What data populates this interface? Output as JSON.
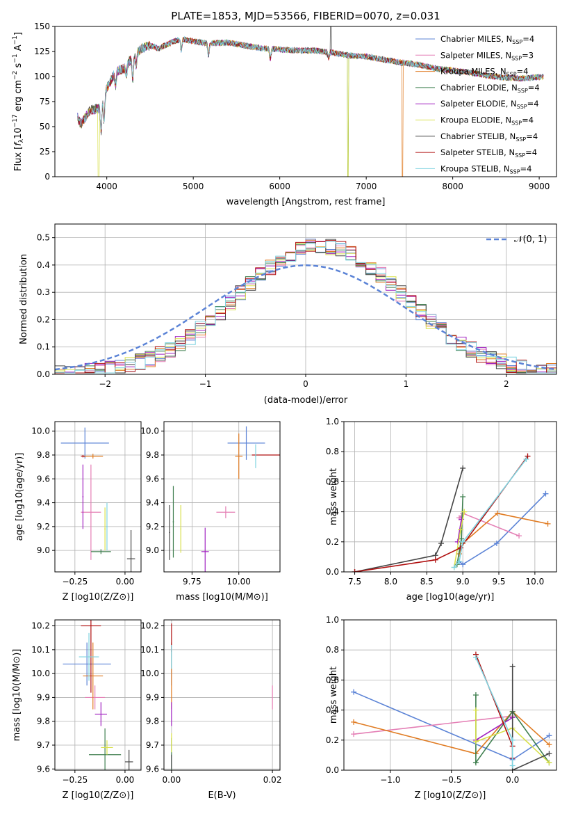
{
  "figure_title": "PLATE=1853, MJD=53566, FIBERID=0070, z=0.031",
  "models": [
    {
      "name": "Chabrier MILES",
      "color": "#5b83d6",
      "nssp": "4"
    },
    {
      "name": "Salpeter MILES",
      "color": "#e47fb5",
      "nssp": "3"
    },
    {
      "name": "Kroupa MILES",
      "color": "#e07b22",
      "nssp": "4"
    },
    {
      "name": "Chabrier ELODIE",
      "color": "#3f7f4f",
      "nssp": "4"
    },
    {
      "name": "Salpeter ELODIE",
      "color": "#a020c0",
      "nssp": "4"
    },
    {
      "name": "Kroupa ELODIE",
      "color": "#d8e04a",
      "nssp": "4"
    },
    {
      "name": "Chabrier STELIB",
      "color": "#444444",
      "nssp": "4"
    },
    {
      "name": "Salpeter STELIB",
      "color": "#b01010",
      "nssp": "4"
    },
    {
      "name": "Kroupa STELIB",
      "color": "#7fd3e0",
      "nssp": "4"
    }
  ],
  "chart_data": [
    {
      "id": "spectrum",
      "type": "line",
      "title": "PLATE=1853, MJD=53566, FIBERID=0070, z=0.031",
      "xlabel": "wavelength [Angstrom, rest frame]",
      "ylabel": "Flux [f_λ 10^-17 erg cm^-2 s^-1 A^-1]",
      "xlim": [
        3400,
        9200
      ],
      "ylim": [
        0,
        150
      ],
      "xticks": [
        "4000",
        "5000",
        "6000",
        "7000",
        "8000",
        "9000"
      ],
      "yticks": [
        "0",
        "25",
        "50",
        "75",
        "100",
        "125",
        "150"
      ],
      "legend": "top-right",
      "grid": false,
      "continuum_x": [
        3650,
        3700,
        3800,
        3900,
        4000,
        4100,
        4200,
        4300,
        4400,
        4500,
        4600,
        4700,
        4800,
        4900,
        5000,
        5200,
        5400,
        5600,
        5800,
        6000,
        6200,
        6400,
        6600,
        6800,
        7000,
        7200,
        7400,
        7600,
        7800,
        8000,
        8200,
        8400,
        8600,
        8800,
        9050
      ],
      "continuum_y": [
        62,
        52,
        66,
        68,
        88,
        105,
        108,
        120,
        128,
        131,
        128,
        132,
        136,
        137,
        135,
        133,
        134,
        131,
        128,
        127,
        126,
        126,
        124,
        121,
        120,
        117,
        114,
        112,
        108,
        106,
        104,
        101,
        99,
        98,
        100
      ],
      "notes": [
        "dips near 3900, 6800 and 7420 Angstrom in some model curves"
      ]
    },
    {
      "id": "residual-histogram",
      "type": "step",
      "xlabel": "(data-model)/error",
      "ylabel": "Normed distribution",
      "xlim": [
        -2.5,
        2.5
      ],
      "ylim": [
        0,
        0.55
      ],
      "xticks": [
        "−2",
        "−1",
        "0",
        "1",
        "2"
      ],
      "yticks": [
        "0.0",
        "0.1",
        "0.2",
        "0.3",
        "0.4",
        "0.5"
      ],
      "legend_label": "𝒩(0, 1)",
      "legend": "top-right",
      "grid": true,
      "bin_width": 0.1,
      "approx_peak": 0.47,
      "approx_center": 0.15,
      "approx_sigma": 0.83
    },
    {
      "id": "age-vs-Z",
      "type": "errorbar",
      "xlabel": "Z [log10(Z/Z⊙)]",
      "ylabel": "age [log10(age/yr)]",
      "xlim": [
        -0.35,
        0.08
      ],
      "ylim": [
        8.82,
        10.08
      ],
      "xticks": [
        "−0.25",
        "0.00"
      ],
      "xtick_values": [
        -0.25,
        0.0
      ],
      "yticks": [
        "9.0",
        "9.2",
        "9.4",
        "9.6",
        "9.8",
        "10.0"
      ],
      "ytick_values": [
        9.0,
        9.2,
        9.4,
        9.6,
        9.8,
        10.0
      ],
      "points": [
        {
          "x": -0.2,
          "y": 9.9,
          "xerr": 0.12,
          "yerr": 0.13
        },
        {
          "x": -0.17,
          "y": 9.32,
          "xerr": 0.05,
          "yerr": 0.4
        },
        {
          "x": -0.16,
          "y": 9.79,
          "xerr": 0.05,
          "yerr": 0.02
        },
        {
          "x": -0.12,
          "y": 8.99,
          "xerr": 0.05,
          "yerr": 0.02
        },
        {
          "x": -0.21,
          "y": 9.45,
          "xerr": 0.003,
          "yerr": 0.27
        },
        {
          "x": -0.1,
          "y": 9.18,
          "xerr": 0.003,
          "yerr": 0.18
        },
        {
          "x": 0.03,
          "y": 8.93,
          "xerr": 0.02,
          "yerr": 0.24
        },
        {
          "x": -0.21,
          "y": 9.79,
          "xerr": 0.01,
          "yerr": 0.01
        },
        {
          "x": -0.09,
          "y": 9.2,
          "xerr": 0.003,
          "yerr": 0.2
        }
      ]
    },
    {
      "id": "age-vs-mass",
      "type": "errorbar",
      "xlabel": "mass [log10(M/M⊙)]",
      "ylabel": "",
      "xlim": [
        9.6,
        10.22
      ],
      "ylim": [
        8.82,
        10.08
      ],
      "xticks": [
        "9.75",
        "10.00"
      ],
      "xtick_values": [
        9.75,
        10.0
      ],
      "yticks": [
        "9.0",
        "9.2",
        "9.4",
        "9.6",
        "9.8",
        "10.0"
      ],
      "ytick_values": [
        9.0,
        9.2,
        9.4,
        9.6,
        9.8,
        10.0
      ],
      "points": [
        {
          "x": 10.04,
          "y": 9.9,
          "xerr": 0.1,
          "yerr": 0.14
        },
        {
          "x": 9.93,
          "y": 9.32,
          "xerr": 0.05,
          "yerr": 0.05
        },
        {
          "x": 10.0,
          "y": 9.79,
          "xerr": 0.02,
          "yerr": 0.19
        },
        {
          "x": 9.65,
          "y": 9.24,
          "xerr": 0.003,
          "yerr": 0.3
        },
        {
          "x": 9.82,
          "y": 8.99,
          "xerr": 0.02,
          "yerr": 0.2
        },
        {
          "x": 9.69,
          "y": 9.18,
          "xerr": 0.003,
          "yerr": 0.2
        },
        {
          "x": 9.63,
          "y": 9.15,
          "xerr": 0.003,
          "yerr": 0.23
        },
        {
          "x": 10.15,
          "y": 9.8,
          "xerr": 0.08,
          "yerr": 0.0
        },
        {
          "x": 10.09,
          "y": 9.79,
          "xerr": 0.003,
          "yerr": 0.1
        }
      ]
    },
    {
      "id": "massweight-vs-age",
      "type": "line",
      "xlabel": "age [log10(age/yr)]",
      "ylabel": "mass weight",
      "xlim": [
        7.35,
        10.3
      ],
      "ylim": [
        0,
        1
      ],
      "xticks": [
        "7.5",
        "8.0",
        "8.5",
        "9.0",
        "9.5",
        "10.0"
      ],
      "xtick_values": [
        7.5,
        8.0,
        8.5,
        9.0,
        9.5,
        10.0
      ],
      "yticks": [
        "0.0",
        "0.2",
        "0.4",
        "0.6",
        "0.8",
        "1.0"
      ],
      "ytick_values": [
        0,
        0.2,
        0.4,
        0.6,
        0.8,
        1.0
      ],
      "grid": true,
      "series": [
        {
          "x": [
            8.95,
            9.0,
            9.47,
            10.15
          ],
          "y": [
            0.07,
            0.05,
            0.19,
            0.52
          ]
        },
        {
          "x": [
            8.95,
            9.0,
            9.78
          ],
          "y": [
            0.36,
            0.39,
            0.24
          ]
        },
        {
          "x": [
            8.95,
            9.0,
            9.48,
            10.18
          ],
          "y": [
            0.12,
            0.19,
            0.39,
            0.32
          ]
        },
        {
          "x": [
            8.92,
            8.98,
            9.0
          ],
          "y": [
            0.05,
            0.22,
            0.5
          ]
        },
        {
          "x": [
            8.93,
            8.98
          ],
          "y": [
            0.2,
            0.35
          ]
        },
        {
          "x": [
            8.88,
            8.97,
            9.02
          ],
          "y": [
            0.03,
            0.28,
            0.4
          ]
        },
        {
          "x": [
            7.5,
            8.62,
            8.7,
            9.0
          ],
          "y": [
            0.0,
            0.11,
            0.19,
            0.69
          ]
        },
        {
          "x": [
            7.5,
            8.62,
            8.97,
            9.9
          ],
          "y": [
            0.0,
            0.08,
            0.16,
            0.77
          ]
        },
        {
          "x": [
            8.88,
            8.95,
            9.0,
            9.88
          ],
          "y": [
            0.03,
            0.07,
            0.2,
            0.75
          ]
        }
      ]
    },
    {
      "id": "mass-vs-Z",
      "type": "errorbar",
      "xlabel": "Z [log10(Z/Z⊙)]",
      "ylabel": "mass [log10(M/M⊙)]",
      "xlim": [
        -0.35,
        0.08
      ],
      "ylim": [
        9.595,
        10.225
      ],
      "xticks": [
        "−0.25",
        "0.00"
      ],
      "xtick_values": [
        -0.25,
        0.0
      ],
      "yticks": [
        "9.6",
        "9.7",
        "9.8",
        "9.9",
        "10.0",
        "10.1",
        "10.2"
      ],
      "ytick_values": [
        9.6,
        9.7,
        9.8,
        9.9,
        10.0,
        10.1,
        10.2
      ],
      "points": [
        {
          "x": -0.19,
          "y": 10.04,
          "xerr": 0.12,
          "yerr": 0.09
        },
        {
          "x": -0.15,
          "y": 9.9,
          "xerr": 0.05,
          "yerr": 0.05
        },
        {
          "x": -0.16,
          "y": 9.99,
          "xerr": 0.05,
          "yerr": 0.14
        },
        {
          "x": -0.1,
          "y": 9.66,
          "xerr": 0.08,
          "yerr": 0.11
        },
        {
          "x": -0.12,
          "y": 9.83,
          "xerr": 0.03,
          "yerr": 0.05
        },
        {
          "x": -0.09,
          "y": 9.69,
          "xerr": 0.03,
          "yerr": 0.03
        },
        {
          "x": 0.02,
          "y": 9.63,
          "xerr": 0.02,
          "yerr": 0.05
        },
        {
          "x": -0.17,
          "y": 10.2,
          "xerr": 0.05,
          "yerr": 0.28
        },
        {
          "x": -0.18,
          "y": 10.07,
          "xerr": 0.05,
          "yerr": 0.1
        }
      ]
    },
    {
      "id": "mass-vs-EBV",
      "type": "errorbar",
      "xlabel": "E(B-V)",
      "ylabel": "",
      "xlim": [
        -0.0015,
        0.0215
      ],
      "ylim": [
        9.595,
        10.225
      ],
      "xticks": [
        "0.00",
        "0.02"
      ],
      "xtick_values": [
        0.0,
        0.02
      ],
      "yticks": [
        "9.6",
        "9.7",
        "9.8",
        "9.9",
        "10.0",
        "10.1",
        "10.2"
      ],
      "ytick_values": [
        9.6,
        9.7,
        9.8,
        9.9,
        10.0,
        10.1,
        10.2
      ],
      "points": [
        {
          "x": 0.0,
          "y": 10.04,
          "xerr": 0.0,
          "yerr": 0.09
        },
        {
          "x": 0.02,
          "y": 9.9,
          "xerr": 0.0,
          "yerr": 0.05
        },
        {
          "x": 0.0,
          "y": 9.99,
          "xerr": 0.0,
          "yerr": 0.14
        },
        {
          "x": 0.0,
          "y": 9.66,
          "xerr": 0.0,
          "yerr": 0.07
        },
        {
          "x": 0.0,
          "y": 9.83,
          "xerr": 0.0,
          "yerr": 0.05
        },
        {
          "x": 0.0,
          "y": 9.71,
          "xerr": 0.0,
          "yerr": 0.04
        },
        {
          "x": 0.0,
          "y": 9.63,
          "xerr": 0.0,
          "yerr": 0.03
        },
        {
          "x": 0.0,
          "y": 10.15,
          "xerr": 0.0,
          "yerr": 0.06
        },
        {
          "x": 0.0,
          "y": 10.07,
          "xerr": 0.0,
          "yerr": 0.05
        }
      ]
    },
    {
      "id": "massweight-vs-Z",
      "type": "line",
      "xlabel": "Z [log10(Z/Z⊙)]",
      "ylabel": "mass weight",
      "xlim": [
        -1.38,
        0.36
      ],
      "ylim": [
        0,
        1
      ],
      "xticks": [
        "−1.0",
        "−0.5",
        "0.0"
      ],
      "xtick_values": [
        -1.0,
        -0.5,
        0.0
      ],
      "yticks": [
        "0.0",
        "0.2",
        "0.4",
        "0.6",
        "0.8",
        "1.0"
      ],
      "ytick_values": [
        0,
        0.2,
        0.4,
        0.6,
        0.8,
        1.0
      ],
      "grid": true,
      "series": [
        {
          "x": [
            -1.3,
            0.0,
            0.3
          ],
          "y": [
            0.52,
            0.07,
            0.23
          ]
        },
        {
          "x": [
            -1.3,
            0.0
          ],
          "y": [
            0.24,
            0.36
          ]
        },
        {
          "x": [
            -1.3,
            -0.3,
            0.0,
            0.3
          ],
          "y": [
            0.32,
            0.11,
            0.39,
            0.17
          ]
        },
        {
          "x": [
            -0.3,
            -0.3,
            0.0,
            0.3
          ],
          "y": [
            0.5,
            0.05,
            0.39,
            0.05
          ]
        },
        {
          "x": [
            -0.3,
            0.0
          ],
          "y": [
            0.2,
            0.35
          ]
        },
        {
          "x": [
            -0.3,
            -0.3,
            0.0,
            0.3
          ],
          "y": [
            0.4,
            0.19,
            0.28,
            0.05
          ]
        },
        {
          "x": [
            0.0,
            0.0,
            0.3
          ],
          "y": [
            0.69,
            0.0,
            0.11
          ]
        },
        {
          "x": [
            -0.3,
            0.0,
            0.0
          ],
          "y": [
            0.77,
            0.16,
            0.08
          ]
        },
        {
          "x": [
            -0.3,
            0.0,
            0.0
          ],
          "y": [
            0.75,
            0.2,
            0.03
          ]
        }
      ]
    }
  ]
}
